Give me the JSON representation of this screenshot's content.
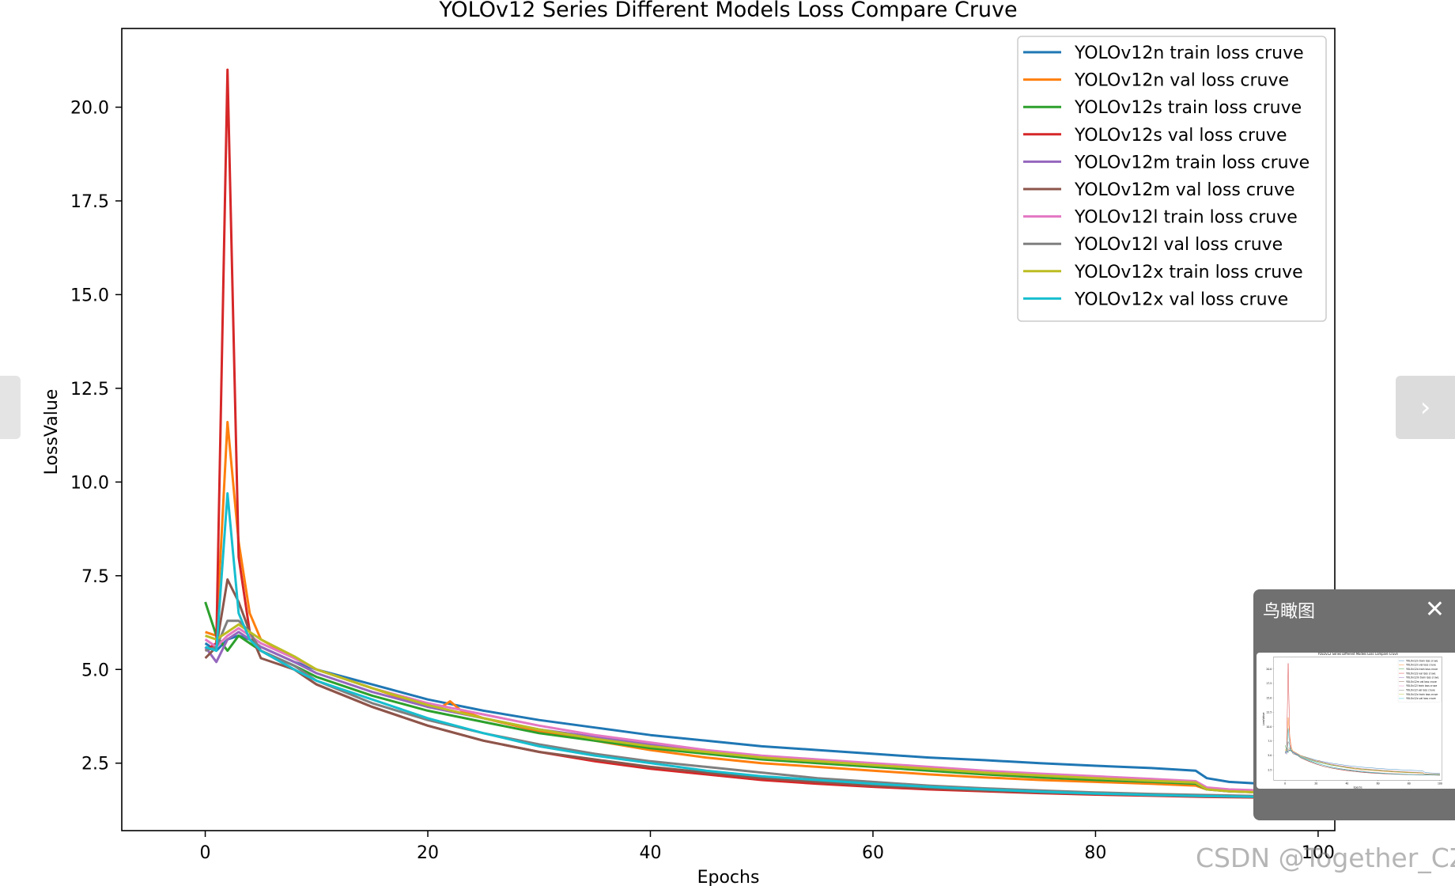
{
  "chart_data": {
    "type": "line",
    "title": "YOLOv12 Series Different Models Loss Compare Cruve",
    "xlabel": "Epochs",
    "ylabel": "LossValue",
    "xlim": [
      -7.5,
      101.5
    ],
    "ylim": [
      0.7,
      22.1
    ],
    "xticks": [
      0,
      20,
      40,
      60,
      80,
      100
    ],
    "xtick_labels": [
      "0",
      "20",
      "40",
      "60",
      "80",
      "100"
    ],
    "yticks": [
      2.5,
      5.0,
      7.5,
      10.0,
      12.5,
      15.0,
      17.5,
      20.0
    ],
    "ytick_labels": [
      "2.5",
      "5.0",
      "7.5",
      "10.0",
      "12.5",
      "15.0",
      "17.5",
      "20.0"
    ],
    "grid": false,
    "legend_position": "upper right",
    "series": [
      {
        "name": "YOLOv12n train loss cruve",
        "color": "#1f77b4",
        "x": [
          0,
          1,
          2,
          3,
          4,
          5,
          8,
          10,
          15,
          20,
          25,
          30,
          35,
          40,
          45,
          50,
          55,
          60,
          65,
          70,
          75,
          80,
          85,
          89,
          90,
          92,
          95,
          100
        ],
        "y": [
          5.7,
          5.5,
          5.8,
          5.9,
          5.8,
          5.6,
          5.2,
          5.0,
          4.6,
          4.2,
          3.9,
          3.65,
          3.45,
          3.25,
          3.1,
          2.95,
          2.85,
          2.75,
          2.65,
          2.58,
          2.5,
          2.43,
          2.37,
          2.3,
          2.1,
          2.0,
          1.95,
          1.9
        ]
      },
      {
        "name": "YOLOv12n val loss cruve",
        "color": "#ff7f0e",
        "x": [
          0,
          1,
          2,
          3,
          4,
          5,
          8,
          10,
          15,
          20,
          21,
          22,
          23,
          25,
          30,
          35,
          40,
          45,
          50,
          55,
          60,
          65,
          70,
          75,
          80,
          85,
          89,
          90,
          92,
          95,
          100
        ],
        "y": [
          6.0,
          5.9,
          11.6,
          8.4,
          6.5,
          5.8,
          5.3,
          5.0,
          4.5,
          4.0,
          3.95,
          4.15,
          3.9,
          3.7,
          3.35,
          3.1,
          2.85,
          2.65,
          2.5,
          2.4,
          2.3,
          2.2,
          2.12,
          2.05,
          2.0,
          1.95,
          1.9,
          1.8,
          1.78,
          1.75,
          1.7
        ]
      },
      {
        "name": "YOLOv12s train loss cruve",
        "color": "#2ca02c",
        "x": [
          0,
          1,
          2,
          3,
          4,
          5,
          8,
          10,
          15,
          20,
          25,
          30,
          35,
          40,
          45,
          50,
          55,
          60,
          65,
          70,
          75,
          80,
          85,
          89,
          90,
          92,
          95,
          100
        ],
        "y": [
          6.8,
          5.9,
          5.5,
          5.9,
          5.7,
          5.5,
          5.1,
          4.8,
          4.3,
          3.9,
          3.6,
          3.3,
          3.1,
          2.9,
          2.75,
          2.6,
          2.5,
          2.4,
          2.3,
          2.2,
          2.12,
          2.05,
          2.0,
          1.95,
          1.8,
          1.75,
          1.72,
          1.7
        ]
      },
      {
        "name": "YOLOv12s val loss cruve",
        "color": "#d62728",
        "x": [
          0,
          1,
          2,
          3,
          4,
          5,
          8,
          10,
          15,
          20,
          25,
          30,
          35,
          40,
          45,
          50,
          55,
          60,
          65,
          70,
          75,
          80,
          85,
          90,
          95,
          100
        ],
        "y": [
          5.5,
          5.7,
          21.0,
          8.0,
          6.0,
          5.5,
          5.0,
          4.6,
          4.0,
          3.5,
          3.1,
          2.8,
          2.55,
          2.35,
          2.2,
          2.05,
          1.95,
          1.87,
          1.8,
          1.75,
          1.7,
          1.66,
          1.63,
          1.6,
          1.58,
          1.56
        ]
      },
      {
        "name": "YOLOv12m train loss cruve",
        "color": "#9467bd",
        "x": [
          0,
          1,
          2,
          3,
          4,
          5,
          8,
          10,
          15,
          20,
          25,
          30,
          35,
          40,
          45,
          50,
          55,
          60,
          65,
          70,
          75,
          80,
          85,
          89,
          90,
          92,
          95,
          100
        ],
        "y": [
          5.6,
          5.2,
          5.8,
          6.0,
          5.8,
          5.6,
          5.2,
          4.9,
          4.4,
          4.0,
          3.7,
          3.4,
          3.2,
          3.0,
          2.8,
          2.65,
          2.55,
          2.45,
          2.35,
          2.25,
          2.17,
          2.1,
          2.03,
          1.98,
          1.8,
          1.75,
          1.72,
          1.7
        ]
      },
      {
        "name": "YOLOv12m val loss cruve",
        "color": "#8c564b",
        "x": [
          0,
          1,
          2,
          3,
          4,
          5,
          8,
          10,
          15,
          20,
          25,
          30,
          35,
          40,
          45,
          50,
          55,
          60,
          65,
          70,
          75,
          80,
          85,
          90,
          95,
          100
        ],
        "y": [
          5.3,
          5.6,
          7.4,
          6.8,
          6.0,
          5.3,
          5.0,
          4.6,
          4.0,
          3.5,
          3.1,
          2.8,
          2.6,
          2.4,
          2.25,
          2.1,
          2.0,
          1.9,
          1.83,
          1.77,
          1.72,
          1.68,
          1.65,
          1.62,
          1.6,
          1.58
        ]
      },
      {
        "name": "YOLOv12l train loss cruve",
        "color": "#e377c2",
        "x": [
          0,
          1,
          2,
          3,
          4,
          5,
          8,
          10,
          15,
          20,
          25,
          30,
          35,
          40,
          45,
          50,
          55,
          60,
          65,
          70,
          75,
          80,
          85,
          89,
          90,
          92,
          95,
          100
        ],
        "y": [
          5.8,
          5.6,
          5.9,
          6.1,
          5.9,
          5.7,
          5.3,
          5.0,
          4.5,
          4.1,
          3.8,
          3.5,
          3.25,
          3.05,
          2.85,
          2.7,
          2.6,
          2.5,
          2.4,
          2.3,
          2.22,
          2.15,
          2.08,
          2.02,
          1.85,
          1.8,
          1.77,
          1.75
        ]
      },
      {
        "name": "YOLOv12l val loss cruve",
        "color": "#7f7f7f",
        "x": [
          0,
          1,
          2,
          3,
          4,
          5,
          8,
          10,
          15,
          20,
          25,
          30,
          35,
          40,
          45,
          50,
          55,
          60,
          65,
          70,
          75,
          80,
          85,
          90,
          95,
          100
        ],
        "y": [
          5.5,
          5.6,
          6.3,
          6.3,
          6.0,
          5.5,
          5.1,
          4.7,
          4.1,
          3.65,
          3.3,
          3.0,
          2.75,
          2.55,
          2.4,
          2.25,
          2.1,
          2.0,
          1.9,
          1.83,
          1.77,
          1.72,
          1.68,
          1.65,
          1.62,
          1.6
        ]
      },
      {
        "name": "YOLOv12x train loss cruve",
        "color": "#bcbd22",
        "x": [
          0,
          1,
          2,
          3,
          4,
          5,
          8,
          10,
          15,
          20,
          25,
          30,
          35,
          40,
          45,
          50,
          55,
          60,
          65,
          70,
          75,
          80,
          85,
          89,
          90,
          92,
          95,
          100
        ],
        "y": [
          5.9,
          5.8,
          6.0,
          6.2,
          6.0,
          5.8,
          5.35,
          5.0,
          4.5,
          4.05,
          3.7,
          3.4,
          3.15,
          2.95,
          2.8,
          2.65,
          2.55,
          2.45,
          2.35,
          2.25,
          2.17,
          2.1,
          2.03,
          1.98,
          1.8,
          1.75,
          1.72,
          1.7
        ]
      },
      {
        "name": "YOLOv12x val loss cruve",
        "color": "#17becf",
        "x": [
          0,
          1,
          2,
          3,
          4,
          5,
          8,
          10,
          15,
          20,
          25,
          30,
          35,
          40,
          45,
          50,
          55,
          60,
          65,
          70,
          75,
          80,
          85,
          90,
          95,
          100
        ],
        "y": [
          5.6,
          5.5,
          9.7,
          6.5,
          5.8,
          5.5,
          5.0,
          4.7,
          4.2,
          3.7,
          3.3,
          2.95,
          2.7,
          2.5,
          2.3,
          2.15,
          2.05,
          1.95,
          1.87,
          1.8,
          1.74,
          1.69,
          1.65,
          1.62,
          1.6,
          1.58
        ]
      }
    ]
  },
  "ui": {
    "next_arrow": "›",
    "birdseye_title": "鸟瞰图",
    "birdseye_close": "✕",
    "watermark": "CSDN @Together_CZ"
  }
}
